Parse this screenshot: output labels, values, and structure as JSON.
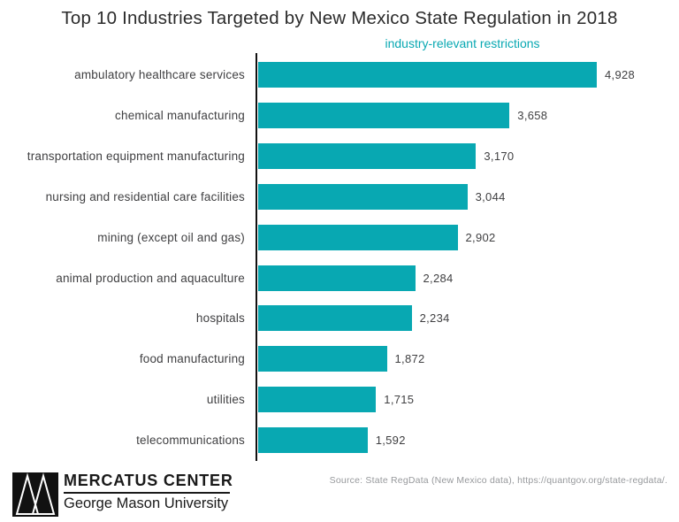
{
  "title": "Top 10 Industries Targeted by New Mexico State Regulation in 2018",
  "chart_data": {
    "type": "bar",
    "orientation": "horizontal",
    "title": "Top 10 Industries Targeted by New Mexico State Regulation in 2018",
    "axis_label": "industry-relevant restrictions",
    "categories": [
      "ambulatory healthcare services",
      "chemical manufacturing",
      "transportation equipment manufacturing",
      "nursing and residential care facilities",
      "mining (except oil and gas)",
      "animal production and aquaculture",
      "hospitals",
      "food manufacturing",
      "utilities",
      "telecommunications"
    ],
    "values": [
      4928,
      3658,
      3170,
      3044,
      2902,
      2284,
      2234,
      1872,
      1715,
      1592
    ],
    "value_labels": [
      "4,928",
      "3,658",
      "3,170",
      "3,044",
      "2,902",
      "2,284",
      "2,234",
      "1,872",
      "1,715",
      "1,592"
    ],
    "bar_color": "#08a8b2",
    "xlim": [
      0,
      6000
    ],
    "grid": false,
    "legend": false
  },
  "footer": {
    "logo_title": "MERCATUS CENTER",
    "logo_subtitle": "George Mason University",
    "source": "Source: State RegData (New Mexico data), https://quantgov.org/state-regdata/."
  },
  "colors": {
    "accent": "#08a8b2",
    "title_text": "#2b2b2b",
    "label_text": "#3f3f41",
    "source_text": "#97999c",
    "axis": "#111111"
  }
}
